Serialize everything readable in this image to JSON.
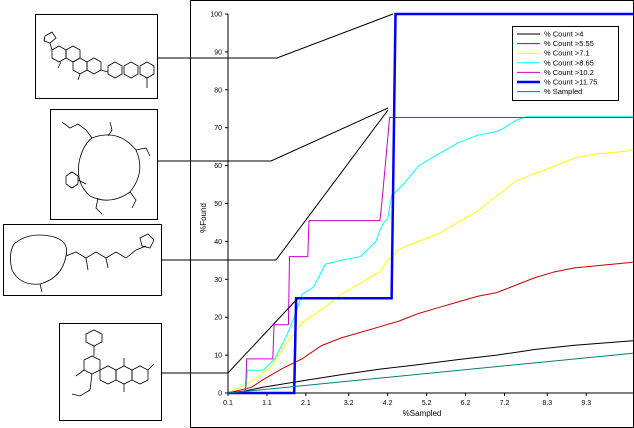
{
  "chart_data": {
    "type": "line",
    "xlabel": "%Sampled",
    "ylabel": "%Found",
    "x_ticks": [
      "0.1",
      "1.1",
      "2.1",
      "3.2",
      "4.2",
      "5.2",
      "6.2",
      "7.2",
      "8.3",
      "9.3"
    ],
    "y_ticks": [
      "0",
      "10",
      "20",
      "30",
      "40",
      "50",
      "60",
      "70",
      "80",
      "90",
      "100"
    ],
    "xlim": [
      0.1,
      10.5
    ],
    "ylim": [
      0,
      100
    ],
    "grid": false,
    "legend_position": "top-right",
    "series": [
      {
        "name": "% Count >4",
        "color": "#000000",
        "width": 1,
        "points": [
          [
            0.1,
            0
          ],
          [
            0.5,
            0.5
          ],
          [
            1,
            1.5
          ],
          [
            2,
            3.2
          ],
          [
            3,
            4.8
          ],
          [
            4,
            6.3
          ],
          [
            5,
            7.5
          ],
          [
            6,
            8.8
          ],
          [
            7,
            10
          ],
          [
            8,
            11.5
          ],
          [
            9,
            12.6
          ],
          [
            10.5,
            13.8
          ]
        ]
      },
      {
        "name": "% Count >5.55",
        "color": "#cc0000",
        "width": 1,
        "points": [
          [
            0.1,
            0
          ],
          [
            0.7,
            1.5
          ],
          [
            1,
            3.5
          ],
          [
            1.5,
            6.5
          ],
          [
            2,
            9
          ],
          [
            2.5,
            12.5
          ],
          [
            3,
            14.5
          ],
          [
            3.5,
            16
          ],
          [
            4,
            17.5
          ],
          [
            4.5,
            19
          ],
          [
            5,
            21
          ],
          [
            5.5,
            22.5
          ],
          [
            6,
            24
          ],
          [
            6.5,
            25.5
          ],
          [
            7,
            26.5
          ],
          [
            7.5,
            28.5
          ],
          [
            8,
            30.5
          ],
          [
            8.5,
            32
          ],
          [
            9,
            33
          ],
          [
            9.5,
            33.5
          ],
          [
            10.5,
            34.5
          ]
        ]
      },
      {
        "name": "% Count >7.1",
        "color": "#ffff00",
        "width": 1,
        "points": [
          [
            0.1,
            0
          ],
          [
            0.7,
            3
          ],
          [
            1.2,
            7
          ],
          [
            1.6,
            13
          ],
          [
            2,
            18.5
          ],
          [
            2.5,
            22
          ],
          [
            3,
            26
          ],
          [
            3.5,
            29
          ],
          [
            4,
            32
          ],
          [
            4.2,
            35
          ],
          [
            4.5,
            38
          ],
          [
            5,
            40
          ],
          [
            5.5,
            42
          ],
          [
            6,
            45
          ],
          [
            6.5,
            48
          ],
          [
            7,
            52
          ],
          [
            7.5,
            56
          ],
          [
            8,
            58
          ],
          [
            8.5,
            60
          ],
          [
            9,
            62
          ],
          [
            9.5,
            63
          ],
          [
            10.5,
            64
          ]
        ]
      },
      {
        "name": "% Count >8.65",
        "color": "#00ffff",
        "width": 1,
        "points": [
          [
            0.1,
            0
          ],
          [
            0.55,
            0
          ],
          [
            0.6,
            6
          ],
          [
            1.0,
            6
          ],
          [
            1.3,
            9
          ],
          [
            1.6,
            15
          ],
          [
            1.8,
            20
          ],
          [
            2.0,
            26
          ],
          [
            2.3,
            28
          ],
          [
            2.6,
            34
          ],
          [
            3.0,
            35
          ],
          [
            3.5,
            36
          ],
          [
            3.9,
            40
          ],
          [
            4.0,
            43
          ],
          [
            4.1,
            45
          ],
          [
            4.2,
            46
          ],
          [
            4.3,
            52
          ],
          [
            4.6,
            55
          ],
          [
            5.0,
            60
          ],
          [
            5.5,
            63
          ],
          [
            6.0,
            66
          ],
          [
            6.5,
            68
          ],
          [
            7.0,
            69
          ],
          [
            7.2,
            70
          ],
          [
            7.5,
            72
          ],
          [
            7.8,
            73
          ],
          [
            10.5,
            73
          ]
        ]
      },
      {
        "name": "% Count >10.2",
        "color": "#cc00cc",
        "width": 1,
        "points": [
          [
            0.1,
            0
          ],
          [
            0.55,
            0
          ],
          [
            0.58,
            9
          ],
          [
            1.25,
            9
          ],
          [
            1.28,
            18
          ],
          [
            1.65,
            18
          ],
          [
            1.68,
            36
          ],
          [
            2.15,
            36
          ],
          [
            2.18,
            45.5
          ],
          [
            4.0,
            45.5
          ],
          [
            4.05,
            50
          ],
          [
            4.25,
            72.7
          ],
          [
            10.5,
            72.7
          ]
        ]
      },
      {
        "name": "% Count >11.75",
        "color": "#0000ff",
        "width": 2.5,
        "points": [
          [
            0.1,
            0
          ],
          [
            1.8,
            0
          ],
          [
            1.85,
            25
          ],
          [
            4.3,
            25
          ],
          [
            4.4,
            100
          ],
          [
            10.5,
            100
          ]
        ]
      },
      {
        "name": "% Sampled",
        "color": "#008080",
        "width": 1,
        "points": [
          [
            0.1,
            0
          ],
          [
            10.5,
            10.5
          ]
        ]
      }
    ]
  },
  "structures": [
    {
      "name": "steroid-glycoside-structure"
    },
    {
      "name": "macrocyclic-peptide-structure"
    },
    {
      "name": "macrolide-structure"
    },
    {
      "name": "anthracycline-structure"
    }
  ]
}
